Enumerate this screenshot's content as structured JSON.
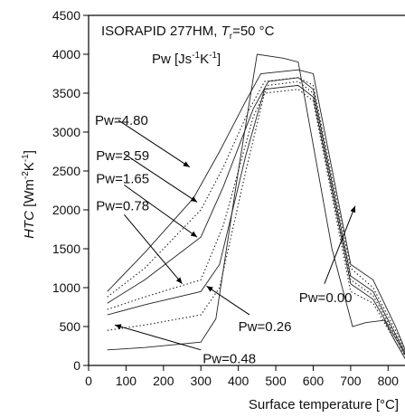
{
  "chart_data": {
    "type": "line",
    "title_parts": {
      "main": "ISORAPID 277HM, ",
      "t_symbol": "T",
      "t_sub": "r",
      "t_value": "=50 °C"
    },
    "legend_title": {
      "base": "Pw [Js",
      "exp1": "-1",
      "mid": "K",
      "exp2": "-1",
      "end": "]"
    },
    "xlabel": "Surface temperature [°C]",
    "ylabel_parts": {
      "italic": "HTC",
      "base": " [Wm",
      "exp1": "-2",
      "mid": "K",
      "exp2": "-1",
      "end": "]"
    },
    "xlim": [
      0,
      850
    ],
    "ylim": [
      0,
      4500
    ],
    "xticks": [
      0,
      100,
      200,
      300,
      400,
      500,
      600,
      700,
      800
    ],
    "yticks": [
      0,
      500,
      1000,
      1500,
      2000,
      2500,
      3000,
      3500,
      4000,
      4500
    ],
    "grid": false,
    "series": [
      {
        "name": "Pw=4.80",
        "style": "solid",
        "points": [
          [
            50,
            950
          ],
          [
            150,
            1450
          ],
          [
            280,
            2150
          ],
          [
            350,
            2750
          ],
          [
            420,
            3400
          ],
          [
            460,
            3750
          ],
          [
            560,
            3800
          ],
          [
            600,
            3750
          ],
          [
            700,
            1300
          ],
          [
            760,
            1100
          ],
          [
            820,
            500
          ],
          [
            850,
            150
          ]
        ]
      },
      {
        "name": "Pw=2.59",
        "style": "dotted",
        "points": [
          [
            50,
            880
          ],
          [
            150,
            1250
          ],
          [
            300,
            2000
          ],
          [
            360,
            2550
          ],
          [
            430,
            3300
          ],
          [
            470,
            3650
          ],
          [
            560,
            3700
          ],
          [
            600,
            3600
          ],
          [
            700,
            1250
          ],
          [
            760,
            1000
          ],
          [
            820,
            450
          ],
          [
            850,
            150
          ]
        ]
      },
      {
        "name": "Pw=1.65",
        "style": "solid",
        "points": [
          [
            50,
            800
          ],
          [
            150,
            1100
          ],
          [
            300,
            1650
          ],
          [
            360,
            2300
          ],
          [
            440,
            3300
          ],
          [
            480,
            3650
          ],
          [
            560,
            3700
          ],
          [
            600,
            3550
          ],
          [
            700,
            1150
          ],
          [
            760,
            950
          ],
          [
            820,
            400
          ],
          [
            850,
            120
          ]
        ]
      },
      {
        "name": "Pw=0.78",
        "style": "dotted",
        "points": [
          [
            50,
            720
          ],
          [
            150,
            880
          ],
          [
            300,
            1100
          ],
          [
            360,
            1800
          ],
          [
            440,
            3200
          ],
          [
            480,
            3600
          ],
          [
            560,
            3650
          ],
          [
            600,
            3500
          ],
          [
            700,
            1100
          ],
          [
            760,
            900
          ],
          [
            820,
            380
          ],
          [
            850,
            100
          ]
        ]
      },
      {
        "name": "Pw=0.26",
        "style": "solid",
        "points": [
          [
            50,
            650
          ],
          [
            150,
            780
          ],
          [
            300,
            950
          ],
          [
            350,
            1300
          ],
          [
            420,
            2700
          ],
          [
            470,
            3550
          ],
          [
            560,
            3600
          ],
          [
            600,
            3450
          ],
          [
            700,
            1050
          ],
          [
            760,
            850
          ],
          [
            820,
            350
          ],
          [
            850,
            100
          ]
        ]
      },
      {
        "name": "Pw=0.48",
        "style": "dotted",
        "points": [
          [
            50,
            450
          ],
          [
            150,
            520
          ],
          [
            300,
            650
          ],
          [
            350,
            1000
          ],
          [
            420,
            2500
          ],
          [
            470,
            3500
          ],
          [
            560,
            3550
          ],
          [
            600,
            3400
          ],
          [
            700,
            950
          ],
          [
            760,
            800
          ],
          [
            820,
            300
          ],
          [
            850,
            80
          ]
        ]
      },
      {
        "name": "Pw=0.00",
        "style": "solid",
        "points": [
          [
            50,
            200
          ],
          [
            150,
            230
          ],
          [
            300,
            300
          ],
          [
            340,
            600
          ],
          [
            400,
            2500
          ],
          [
            450,
            4000
          ],
          [
            520,
            3950
          ],
          [
            560,
            3900
          ],
          [
            650,
            1500
          ],
          [
            705,
            500
          ],
          [
            740,
            550
          ],
          [
            790,
            580
          ],
          [
            820,
            300
          ],
          [
            850,
            50
          ]
        ]
      }
    ],
    "annotations": [
      {
        "text": "Pw=4.80",
        "label_at": [
          17,
          3150
        ],
        "arrow_from": [
          80,
          3150
        ],
        "arrow_to": [
          270,
          2550
        ]
      },
      {
        "text": "Pw=2.59",
        "label_at": [
          20,
          2700
        ],
        "arrow_from": [
          95,
          2720
        ],
        "arrow_to": [
          290,
          2100
        ]
      },
      {
        "text": "Pw=1.65",
        "label_at": [
          20,
          2400
        ],
        "arrow_from": [
          95,
          2320
        ],
        "arrow_to": [
          290,
          1650
        ]
      },
      {
        "text": "Pw=0.78",
        "label_at": [
          20,
          2050
        ],
        "arrow_from": [
          95,
          1940
        ],
        "arrow_to": [
          250,
          1050
        ]
      },
      {
        "text": "Pw=0.26",
        "label_at": [
          400,
          500
        ],
        "arrow_from": [
          430,
          650
        ],
        "arrow_to": [
          315,
          1020
        ]
      },
      {
        "text": "Pw=0.48",
        "label_at": [
          305,
          90
        ],
        "arrow_from": [
          300,
          200
        ],
        "arrow_to": [
          70,
          520
        ]
      },
      {
        "text": "Pw=0.00",
        "label_at": [
          562,
          870
        ],
        "arrow_from": [
          630,
          1050
        ],
        "arrow_to": [
          712,
          2050
        ]
      }
    ]
  }
}
